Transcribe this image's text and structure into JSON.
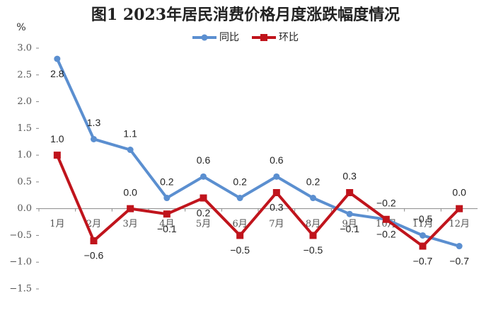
{
  "chart_data": {
    "type": "line",
    "title": "图1 2023年居民消费价格月度涨跌幅度情况",
    "y_label": "%",
    "categories": [
      "1月",
      "2月",
      "3月",
      "4月",
      "5月",
      "6月",
      "7月",
      "8月",
      "9月",
      "10月",
      "11月",
      "12月"
    ],
    "series": [
      {
        "name": "同比",
        "color": "#5b8fd0",
        "marker": "circle",
        "values": [
          2.8,
          1.3,
          1.1,
          0.2,
          0.6,
          0.2,
          0.6,
          0.2,
          -0.1,
          -0.2,
          -0.5,
          -0.7
        ],
        "value_labels": [
          "2.8",
          "1.3",
          "1.1",
          "0.2",
          "0.6",
          "0.2",
          "0.6",
          "0.2",
          "−0.1",
          "−0.2",
          "−0.5",
          "−0.7"
        ]
      },
      {
        "name": "环比",
        "color": "#c0141c",
        "marker": "square",
        "values": [
          1.0,
          -0.6,
          0.0,
          -0.1,
          0.2,
          -0.5,
          0.3,
          -0.5,
          0.3,
          -0.2,
          -0.7,
          0.0
        ],
        "value_labels": [
          "1.0",
          "−0.6",
          "0.0",
          "−0.1",
          "0.2",
          "−0.5",
          "0.3",
          "−0.5",
          "0.3",
          "−0.2",
          "−0.7",
          "0.0"
        ]
      }
    ],
    "ylim": [
      -1.5,
      3.0
    ],
    "yticks": [
      {
        "value": 3.0,
        "label": "3.0"
      },
      {
        "value": 2.5,
        "label": "2.5"
      },
      {
        "value": 2.0,
        "label": "2.0"
      },
      {
        "value": 1.5,
        "label": "1.5"
      },
      {
        "value": 1.0,
        "label": "1.0"
      },
      {
        "value": 0.5,
        "label": "0.5"
      },
      {
        "value": 0,
        "label": "0.0"
      },
      {
        "value": -0.5,
        "label": "−0.5"
      },
      {
        "value": -1.0,
        "label": "−1.0"
      },
      {
        "value": -1.5,
        "label": "−1.5"
      }
    ],
    "legend": "top"
  }
}
